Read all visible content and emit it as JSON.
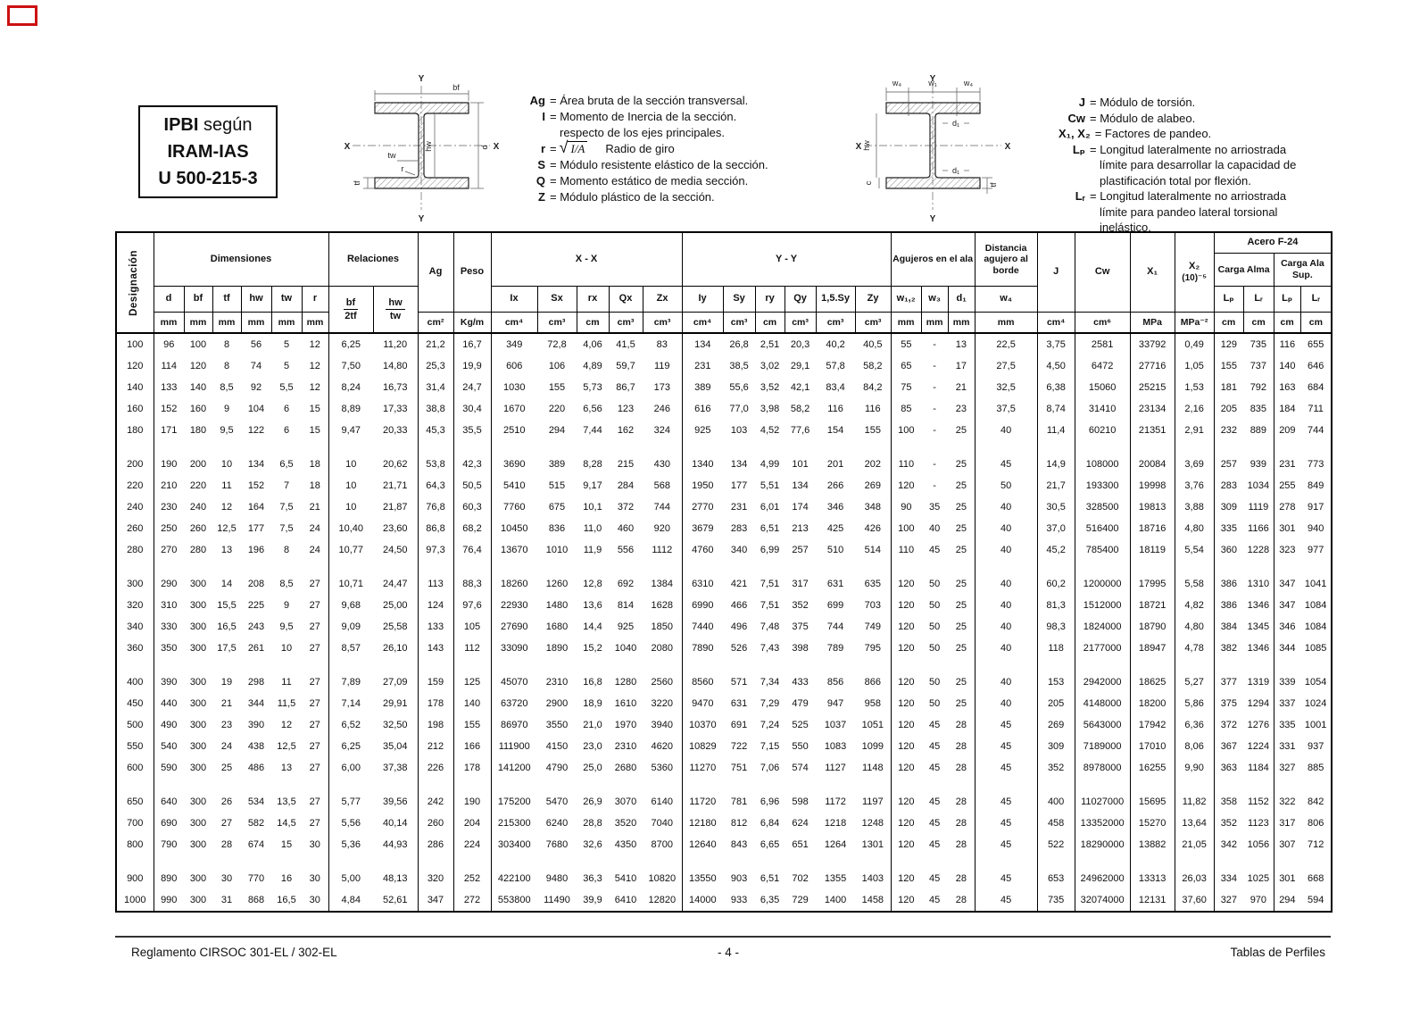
{
  "title_box": {
    "line1_bold": "IPBI",
    "line1_rest": " según",
    "line2": "IRAM-IAS",
    "line3": "U 500-215-3"
  },
  "diagrams": {
    "left": {
      "y_top": "Y",
      "y_bottom": "Y",
      "x_left": "X",
      "x_right": "X",
      "bf": "bf",
      "d": "d",
      "hw": "hw",
      "tw": "tw",
      "tf": "tf",
      "r": "r"
    },
    "right": {
      "y_top": "Y",
      "y_bottom": "Y",
      "x_left": "X",
      "x_right": "X",
      "w4_left": "w₄",
      "w1": "w₁",
      "w4_right": "w₄",
      "d1_top": "d₁",
      "d1_bottom": "d₁",
      "hw": "hw",
      "c": "c",
      "tf": "tf"
    }
  },
  "legend_left": {
    "entries": [
      {
        "sym": "Ag",
        "text": "= Área bruta de la sección transversal."
      },
      {
        "sym": "I",
        "text": "= Momento de Inercia de la sección."
      },
      {
        "sym": "",
        "text": "respecto de los ejes principales.",
        "indent": true
      },
      {
        "sym": "r",
        "formula": true,
        "radicand": "I/A",
        "text": "Radio de giro"
      },
      {
        "sym": "S",
        "text": "= Módulo resistente elástico de la sección."
      },
      {
        "sym": "Q",
        "text": "= Momento estático de media sección."
      },
      {
        "sym": "Z",
        "text": "= Módulo plástico de la sección."
      }
    ]
  },
  "legend_right": {
    "entries": [
      {
        "sym": "J",
        "text": "= Módulo de torsión."
      },
      {
        "sym": "Cw",
        "text": "= Módulo de alabeo."
      },
      {
        "sym": "X₁, X₂",
        "text": "= Factores de pandeo."
      },
      {
        "sym": "Lₚ",
        "text": "= Longitud lateralmente no arriostrada"
      },
      {
        "sym": "",
        "text": "límite para desarrollar la capacidad de",
        "indent": true
      },
      {
        "sym": "",
        "text": "plastificación total por flexión.",
        "indent": true
      },
      {
        "sym": "Lᵣ",
        "text": "= Longitud lateralmente no arriostrada"
      },
      {
        "sym": "",
        "text": "límite para pandeo lateral torsional",
        "indent": true
      },
      {
        "sym": "",
        "text": "inelástico.",
        "indent": true
      }
    ]
  },
  "table": {
    "header": {
      "designacion": "Designación",
      "dimensiones": "Dimensiones",
      "relaciones": "Relaciones",
      "ag": "Ag",
      "peso": "Peso",
      "xx": "X - X",
      "yy": "Y - Y",
      "agujeros": "Agujeros en el ala",
      "distancia": "Distancia agujero al borde",
      "j": "J",
      "cw": "Cw",
      "x1": "X₁",
      "x2_line1": "X₂",
      "x2_line2": "(10)⁻⁵",
      "acero": "Acero F-24",
      "carga_alma": "Carga Alma",
      "carga_ala": "Carga Ala Sup.",
      "dim_subs": [
        "d",
        "bf",
        "tf",
        "hw",
        "tw",
        "r"
      ],
      "frac": [
        {
          "num": "bf",
          "den": "2tf"
        },
        {
          "num": "hw",
          "den": "tw"
        }
      ],
      "xx_subs": [
        "Ix",
        "Sx",
        "rx",
        "Qx",
        "Zx"
      ],
      "yy_subs": [
        "Iy",
        "Sy",
        "ry",
        "Qy",
        "1,5.Sy",
        "Zy"
      ],
      "hole_subs": [
        "w₁,₂",
        "w₃",
        "d₁"
      ],
      "w4": "w₄",
      "load_subs": [
        "Lₚ",
        "Lᵣ",
        "Lₚ",
        "Lᵣ"
      ],
      "units": [
        "mm",
        "mm",
        "mm",
        "mm",
        "mm",
        "mm",
        "cm²",
        "Kg/m",
        "cm⁴",
        "cm³",
        "cm",
        "cm³",
        "cm³",
        "cm⁴",
        "cm³",
        "cm",
        "cm³",
        "cm³",
        "cm³",
        "mm",
        "mm",
        "mm",
        "mm",
        "cm⁴",
        "cm⁶",
        "MPa",
        "MPa⁻²",
        "cm",
        "cm",
        "cm",
        "cm"
      ]
    },
    "rows": [
      [
        "100",
        "96",
        "100",
        "8",
        "56",
        "5",
        "12",
        "6,25",
        "11,20",
        "21,2",
        "16,7",
        "349",
        "72,8",
        "4,06",
        "41,5",
        "83",
        "134",
        "26,8",
        "2,51",
        "20,3",
        "40,2",
        "40,5",
        "55",
        "-",
        "13",
        "22,5",
        "3,75",
        "2581",
        "33792",
        "0,49",
        "129",
        "735",
        "116",
        "655"
      ],
      [
        "120",
        "114",
        "120",
        "8",
        "74",
        "5",
        "12",
        "7,50",
        "14,80",
        "25,3",
        "19,9",
        "606",
        "106",
        "4,89",
        "59,7",
        "119",
        "231",
        "38,5",
        "3,02",
        "29,1",
        "57,8",
        "58,2",
        "65",
        "-",
        "17",
        "27,5",
        "4,50",
        "6472",
        "27716",
        "1,05",
        "155",
        "737",
        "140",
        "646"
      ],
      [
        "140",
        "133",
        "140",
        "8,5",
        "92",
        "5,5",
        "12",
        "8,24",
        "16,73",
        "31,4",
        "24,7",
        "1030",
        "155",
        "5,73",
        "86,7",
        "173",
        "389",
        "55,6",
        "3,52",
        "42,1",
        "83,4",
        "84,2",
        "75",
        "-",
        "21",
        "32,5",
        "6,38",
        "15060",
        "25215",
        "1,53",
        "181",
        "792",
        "163",
        "684"
      ],
      [
        "160",
        "152",
        "160",
        "9",
        "104",
        "6",
        "15",
        "8,89",
        "17,33",
        "38,8",
        "30,4",
        "1670",
        "220",
        "6,56",
        "123",
        "246",
        "616",
        "77,0",
        "3,98",
        "58,2",
        "116",
        "116",
        "85",
        "-",
        "23",
        "37,5",
        "8,74",
        "31410",
        "23134",
        "2,16",
        "205",
        "835",
        "184",
        "711"
      ],
      [
        "180",
        "171",
        "180",
        "9,5",
        "122",
        "6",
        "15",
        "9,47",
        "20,33",
        "45,3",
        "35,5",
        "2510",
        "294",
        "7,44",
        "162",
        "324",
        "925",
        "103",
        "4,52",
        "77,6",
        "154",
        "155",
        "100",
        "-",
        "25",
        "40",
        "11,4",
        "60210",
        "21351",
        "2,91",
        "232",
        "889",
        "209",
        "744"
      ],
      [
        "200",
        "190",
        "200",
        "10",
        "134",
        "6,5",
        "18",
        "10",
        "20,62",
        "53,8",
        "42,3",
        "3690",
        "389",
        "8,28",
        "215",
        "430",
        "1340",
        "134",
        "4,99",
        "101",
        "201",
        "202",
        "110",
        "-",
        "25",
        "45",
        "14,9",
        "108000",
        "20084",
        "3,69",
        "257",
        "939",
        "231",
        "773"
      ],
      [
        "220",
        "210",
        "220",
        "11",
        "152",
        "7",
        "18",
        "10",
        "21,71",
        "64,3",
        "50,5",
        "5410",
        "515",
        "9,17",
        "284",
        "568",
        "1950",
        "177",
        "5,51",
        "134",
        "266",
        "269",
        "120",
        "-",
        "25",
        "50",
        "21,7",
        "193300",
        "19998",
        "3,76",
        "283",
        "1034",
        "255",
        "849"
      ],
      [
        "240",
        "230",
        "240",
        "12",
        "164",
        "7,5",
        "21",
        "10",
        "21,87",
        "76,8",
        "60,3",
        "7760",
        "675",
        "10,1",
        "372",
        "744",
        "2770",
        "231",
        "6,01",
        "174",
        "346",
        "348",
        "90",
        "35",
        "25",
        "40",
        "30,5",
        "328500",
        "19813",
        "3,88",
        "309",
        "1119",
        "278",
        "917"
      ],
      [
        "260",
        "250",
        "260",
        "12,5",
        "177",
        "7,5",
        "24",
        "10,40",
        "23,60",
        "86,8",
        "68,2",
        "10450",
        "836",
        "11,0",
        "460",
        "920",
        "3679",
        "283",
        "6,51",
        "213",
        "425",
        "426",
        "100",
        "40",
        "25",
        "40",
        "37,0",
        "516400",
        "18716",
        "4,80",
        "335",
        "1166",
        "301",
        "940"
      ],
      [
        "280",
        "270",
        "280",
        "13",
        "196",
        "8",
        "24",
        "10,77",
        "24,50",
        "97,3",
        "76,4",
        "13670",
        "1010",
        "11,9",
        "556",
        "1112",
        "4760",
        "340",
        "6,99",
        "257",
        "510",
        "514",
        "110",
        "45",
        "25",
        "40",
        "45,2",
        "785400",
        "18119",
        "5,54",
        "360",
        "1228",
        "323",
        "977"
      ],
      [
        "300",
        "290",
        "300",
        "14",
        "208",
        "8,5",
        "27",
        "10,71",
        "24,47",
        "113",
        "88,3",
        "18260",
        "1260",
        "12,8",
        "692",
        "1384",
        "6310",
        "421",
        "7,51",
        "317",
        "631",
        "635",
        "120",
        "50",
        "25",
        "40",
        "60,2",
        "1200000",
        "17995",
        "5,58",
        "386",
        "1310",
        "347",
        "1041"
      ],
      [
        "320",
        "310",
        "300",
        "15,5",
        "225",
        "9",
        "27",
        "9,68",
        "25,00",
        "124",
        "97,6",
        "22930",
        "1480",
        "13,6",
        "814",
        "1628",
        "6990",
        "466",
        "7,51",
        "352",
        "699",
        "703",
        "120",
        "50",
        "25",
        "40",
        "81,3",
        "1512000",
        "18721",
        "4,82",
        "386",
        "1346",
        "347",
        "1084"
      ],
      [
        "340",
        "330",
        "300",
        "16,5",
        "243",
        "9,5",
        "27",
        "9,09",
        "25,58",
        "133",
        "105",
        "27690",
        "1680",
        "14,4",
        "925",
        "1850",
        "7440",
        "496",
        "7,48",
        "375",
        "744",
        "749",
        "120",
        "50",
        "25",
        "40",
        "98,3",
        "1824000",
        "18790",
        "4,80",
        "384",
        "1345",
        "346",
        "1084"
      ],
      [
        "360",
        "350",
        "300",
        "17,5",
        "261",
        "10",
        "27",
        "8,57",
        "26,10",
        "143",
        "112",
        "33090",
        "1890",
        "15,2",
        "1040",
        "2080",
        "7890",
        "526",
        "7,43",
        "398",
        "789",
        "795",
        "120",
        "50",
        "25",
        "40",
        "118",
        "2177000",
        "18947",
        "4,78",
        "382",
        "1346",
        "344",
        "1085"
      ],
      [
        "400",
        "390",
        "300",
        "19",
        "298",
        "11",
        "27",
        "7,89",
        "27,09",
        "159",
        "125",
        "45070",
        "2310",
        "16,8",
        "1280",
        "2560",
        "8560",
        "571",
        "7,34",
        "433",
        "856",
        "866",
        "120",
        "50",
        "25",
        "40",
        "153",
        "2942000",
        "18625",
        "5,27",
        "377",
        "1319",
        "339",
        "1054"
      ],
      [
        "450",
        "440",
        "300",
        "21",
        "344",
        "11,5",
        "27",
        "7,14",
        "29,91",
        "178",
        "140",
        "63720",
        "2900",
        "18,9",
        "1610",
        "3220",
        "9470",
        "631",
        "7,29",
        "479",
        "947",
        "958",
        "120",
        "50",
        "25",
        "40",
        "205",
        "4148000",
        "18200",
        "5,86",
        "375",
        "1294",
        "337",
        "1024"
      ],
      [
        "500",
        "490",
        "300",
        "23",
        "390",
        "12",
        "27",
        "6,52",
        "32,50",
        "198",
        "155",
        "86970",
        "3550",
        "21,0",
        "1970",
        "3940",
        "10370",
        "691",
        "7,24",
        "525",
        "1037",
        "1051",
        "120",
        "45",
        "28",
        "45",
        "269",
        "5643000",
        "17942",
        "6,36",
        "372",
        "1276",
        "335",
        "1001"
      ],
      [
        "550",
        "540",
        "300",
        "24",
        "438",
        "12,5",
        "27",
        "6,25",
        "35,04",
        "212",
        "166",
        "111900",
        "4150",
        "23,0",
        "2310",
        "4620",
        "10829",
        "722",
        "7,15",
        "550",
        "1083",
        "1099",
        "120",
        "45",
        "28",
        "45",
        "309",
        "7189000",
        "17010",
        "8,06",
        "367",
        "1224",
        "331",
        "937"
      ],
      [
        "600",
        "590",
        "300",
        "25",
        "486",
        "13",
        "27",
        "6,00",
        "37,38",
        "226",
        "178",
        "141200",
        "4790",
        "25,0",
        "2680",
        "5360",
        "11270",
        "751",
        "7,06",
        "574",
        "1127",
        "1148",
        "120",
        "45",
        "28",
        "45",
        "352",
        "8978000",
        "16255",
        "9,90",
        "363",
        "1184",
        "327",
        "885"
      ],
      [
        "650",
        "640",
        "300",
        "26",
        "534",
        "13,5",
        "27",
        "5,77",
        "39,56",
        "242",
        "190",
        "175200",
        "5470",
        "26,9",
        "3070",
        "6140",
        "11720",
        "781",
        "6,96",
        "598",
        "1172",
        "1197",
        "120",
        "45",
        "28",
        "45",
        "400",
        "11027000",
        "15695",
        "11,82",
        "358",
        "1152",
        "322",
        "842"
      ],
      [
        "700",
        "690",
        "300",
        "27",
        "582",
        "14,5",
        "27",
        "5,56",
        "40,14",
        "260",
        "204",
        "215300",
        "6240",
        "28,8",
        "3520",
        "7040",
        "12180",
        "812",
        "6,84",
        "624",
        "1218",
        "1248",
        "120",
        "45",
        "28",
        "45",
        "458",
        "13352000",
        "15270",
        "13,64",
        "352",
        "1123",
        "317",
        "806"
      ],
      [
        "800",
        "790",
        "300",
        "28",
        "674",
        "15",
        "30",
        "5,36",
        "44,93",
        "286",
        "224",
        "303400",
        "7680",
        "32,6",
        "4350",
        "8700",
        "12640",
        "843",
        "6,65",
        "651",
        "1264",
        "1301",
        "120",
        "45",
        "28",
        "45",
        "522",
        "18290000",
        "13882",
        "21,05",
        "342",
        "1056",
        "307",
        "712"
      ],
      [
        "900",
        "890",
        "300",
        "30",
        "770",
        "16",
        "30",
        "5,00",
        "48,13",
        "320",
        "252",
        "422100",
        "9480",
        "36,3",
        "5410",
        "10820",
        "13550",
        "903",
        "6,51",
        "702",
        "1355",
        "1403",
        "120",
        "45",
        "28",
        "45",
        "653",
        "24962000",
        "13313",
        "26,03",
        "334",
        "1025",
        "301",
        "668"
      ],
      [
        "1000",
        "990",
        "300",
        "31",
        "868",
        "16,5",
        "30",
        "4,84",
        "52,61",
        "347",
        "272",
        "553800",
        "11490",
        "39,9",
        "6410",
        "12820",
        "14000",
        "933",
        "6,35",
        "729",
        "1400",
        "1458",
        "120",
        "45",
        "28",
        "45",
        "735",
        "32074000",
        "12131",
        "37,60",
        "327",
        "970",
        "294",
        "594"
      ]
    ],
    "group_breaks_after": [
      "180",
      "280",
      "360",
      "600",
      "800"
    ]
  },
  "footer": {
    "left": "Reglamento CIRSOC 301-EL / 302-EL",
    "center": "- 4 -",
    "right": "Tablas de Perfiles"
  }
}
